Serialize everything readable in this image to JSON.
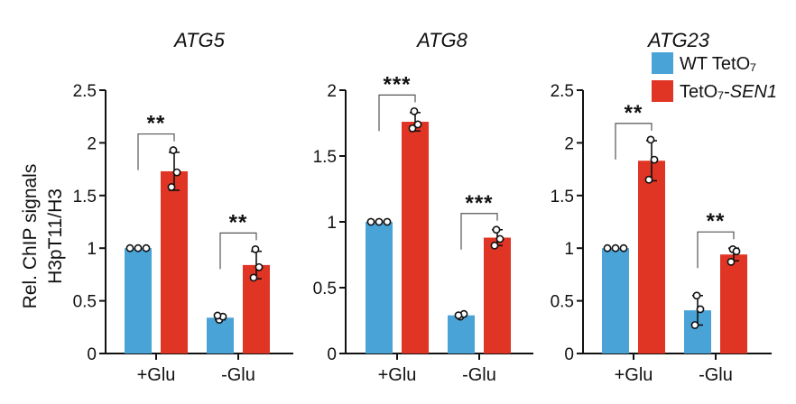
{
  "colors": {
    "wt": "#4aa3d6",
    "sen1": "#e03424",
    "axis": "#111111",
    "point_fill": "#ffffff"
  },
  "y_axis_label_lines": [
    "Rel. ChIP signals",
    "H3pT11/H3"
  ],
  "legend": {
    "placement": "top-right",
    "items": [
      {
        "label": "WT TetO₇",
        "color": "#4aa3d6"
      },
      {
        "label_prefix": "TetO₇-",
        "label_italic": "SEN1",
        "color": "#e03424"
      }
    ]
  },
  "chart_data": [
    {
      "type": "bar",
      "title": "ATG5",
      "categories": [
        "+Glu",
        "-Glu"
      ],
      "ylim": [
        0,
        2.5
      ],
      "yticks": [
        "0",
        "0.5",
        "1",
        "1.5",
        "2",
        "2.5"
      ],
      "series": [
        {
          "name": "WT TetO₇",
          "values": [
            1.0,
            0.34
          ],
          "points": [
            [
              1.0,
              1.0,
              1.0
            ],
            [
              0.32,
              0.35,
              0.36
            ]
          ],
          "errors": [
            0.0,
            0.02
          ]
        },
        {
          "name": "TetO₇-SEN1",
          "values": [
            1.73,
            0.84
          ],
          "points": [
            [
              1.93,
              1.72,
              1.58
            ],
            [
              0.99,
              0.82,
              0.72
            ]
          ],
          "errors": [
            0.18,
            0.13
          ]
        }
      ],
      "significance": [
        "**",
        "**"
      ]
    },
    {
      "type": "bar",
      "title": "ATG8",
      "categories": [
        "+Glu",
        "-Glu"
      ],
      "ylim": [
        0,
        2
      ],
      "yticks": [
        "0",
        "0.5",
        "1",
        "1.5",
        "2"
      ],
      "series": [
        {
          "name": "WT TetO₇",
          "values": [
            1.0,
            0.29
          ],
          "points": [
            [
              1.0,
              1.0,
              1.0
            ],
            [
              0.28,
              0.3,
              0.29
            ]
          ],
          "errors": [
            0.0,
            0.01
          ]
        },
        {
          "name": "TetO₇-SEN1",
          "values": [
            1.76,
            0.88
          ],
          "points": [
            [
              1.84,
              1.74,
              1.71
            ],
            [
              0.94,
              0.87,
              0.82
            ]
          ],
          "errors": [
            0.07,
            0.06
          ]
        }
      ],
      "significance": [
        "***",
        "***"
      ]
    },
    {
      "type": "bar",
      "title": "ATG23",
      "categories": [
        "+Glu",
        "-Glu"
      ],
      "ylim": [
        0,
        2.5
      ],
      "yticks": [
        "0",
        "0.5",
        "1",
        "1.5",
        "2",
        "2.5"
      ],
      "series": [
        {
          "name": "WT TetO₇",
          "values": [
            1.0,
            0.41
          ],
          "points": [
            [
              1.0,
              1.0,
              1.0
            ],
            [
              0.55,
              0.42,
              0.27
            ]
          ],
          "errors": [
            0.0,
            0.14
          ]
        },
        {
          "name": "TetO₇-SEN1",
          "values": [
            1.83,
            0.94
          ],
          "points": [
            [
              2.03,
              1.84,
              1.65
            ],
            [
              0.99,
              0.97,
              0.87
            ]
          ],
          "errors": [
            0.19,
            0.06
          ]
        }
      ],
      "significance": [
        "**",
        "**"
      ]
    }
  ]
}
